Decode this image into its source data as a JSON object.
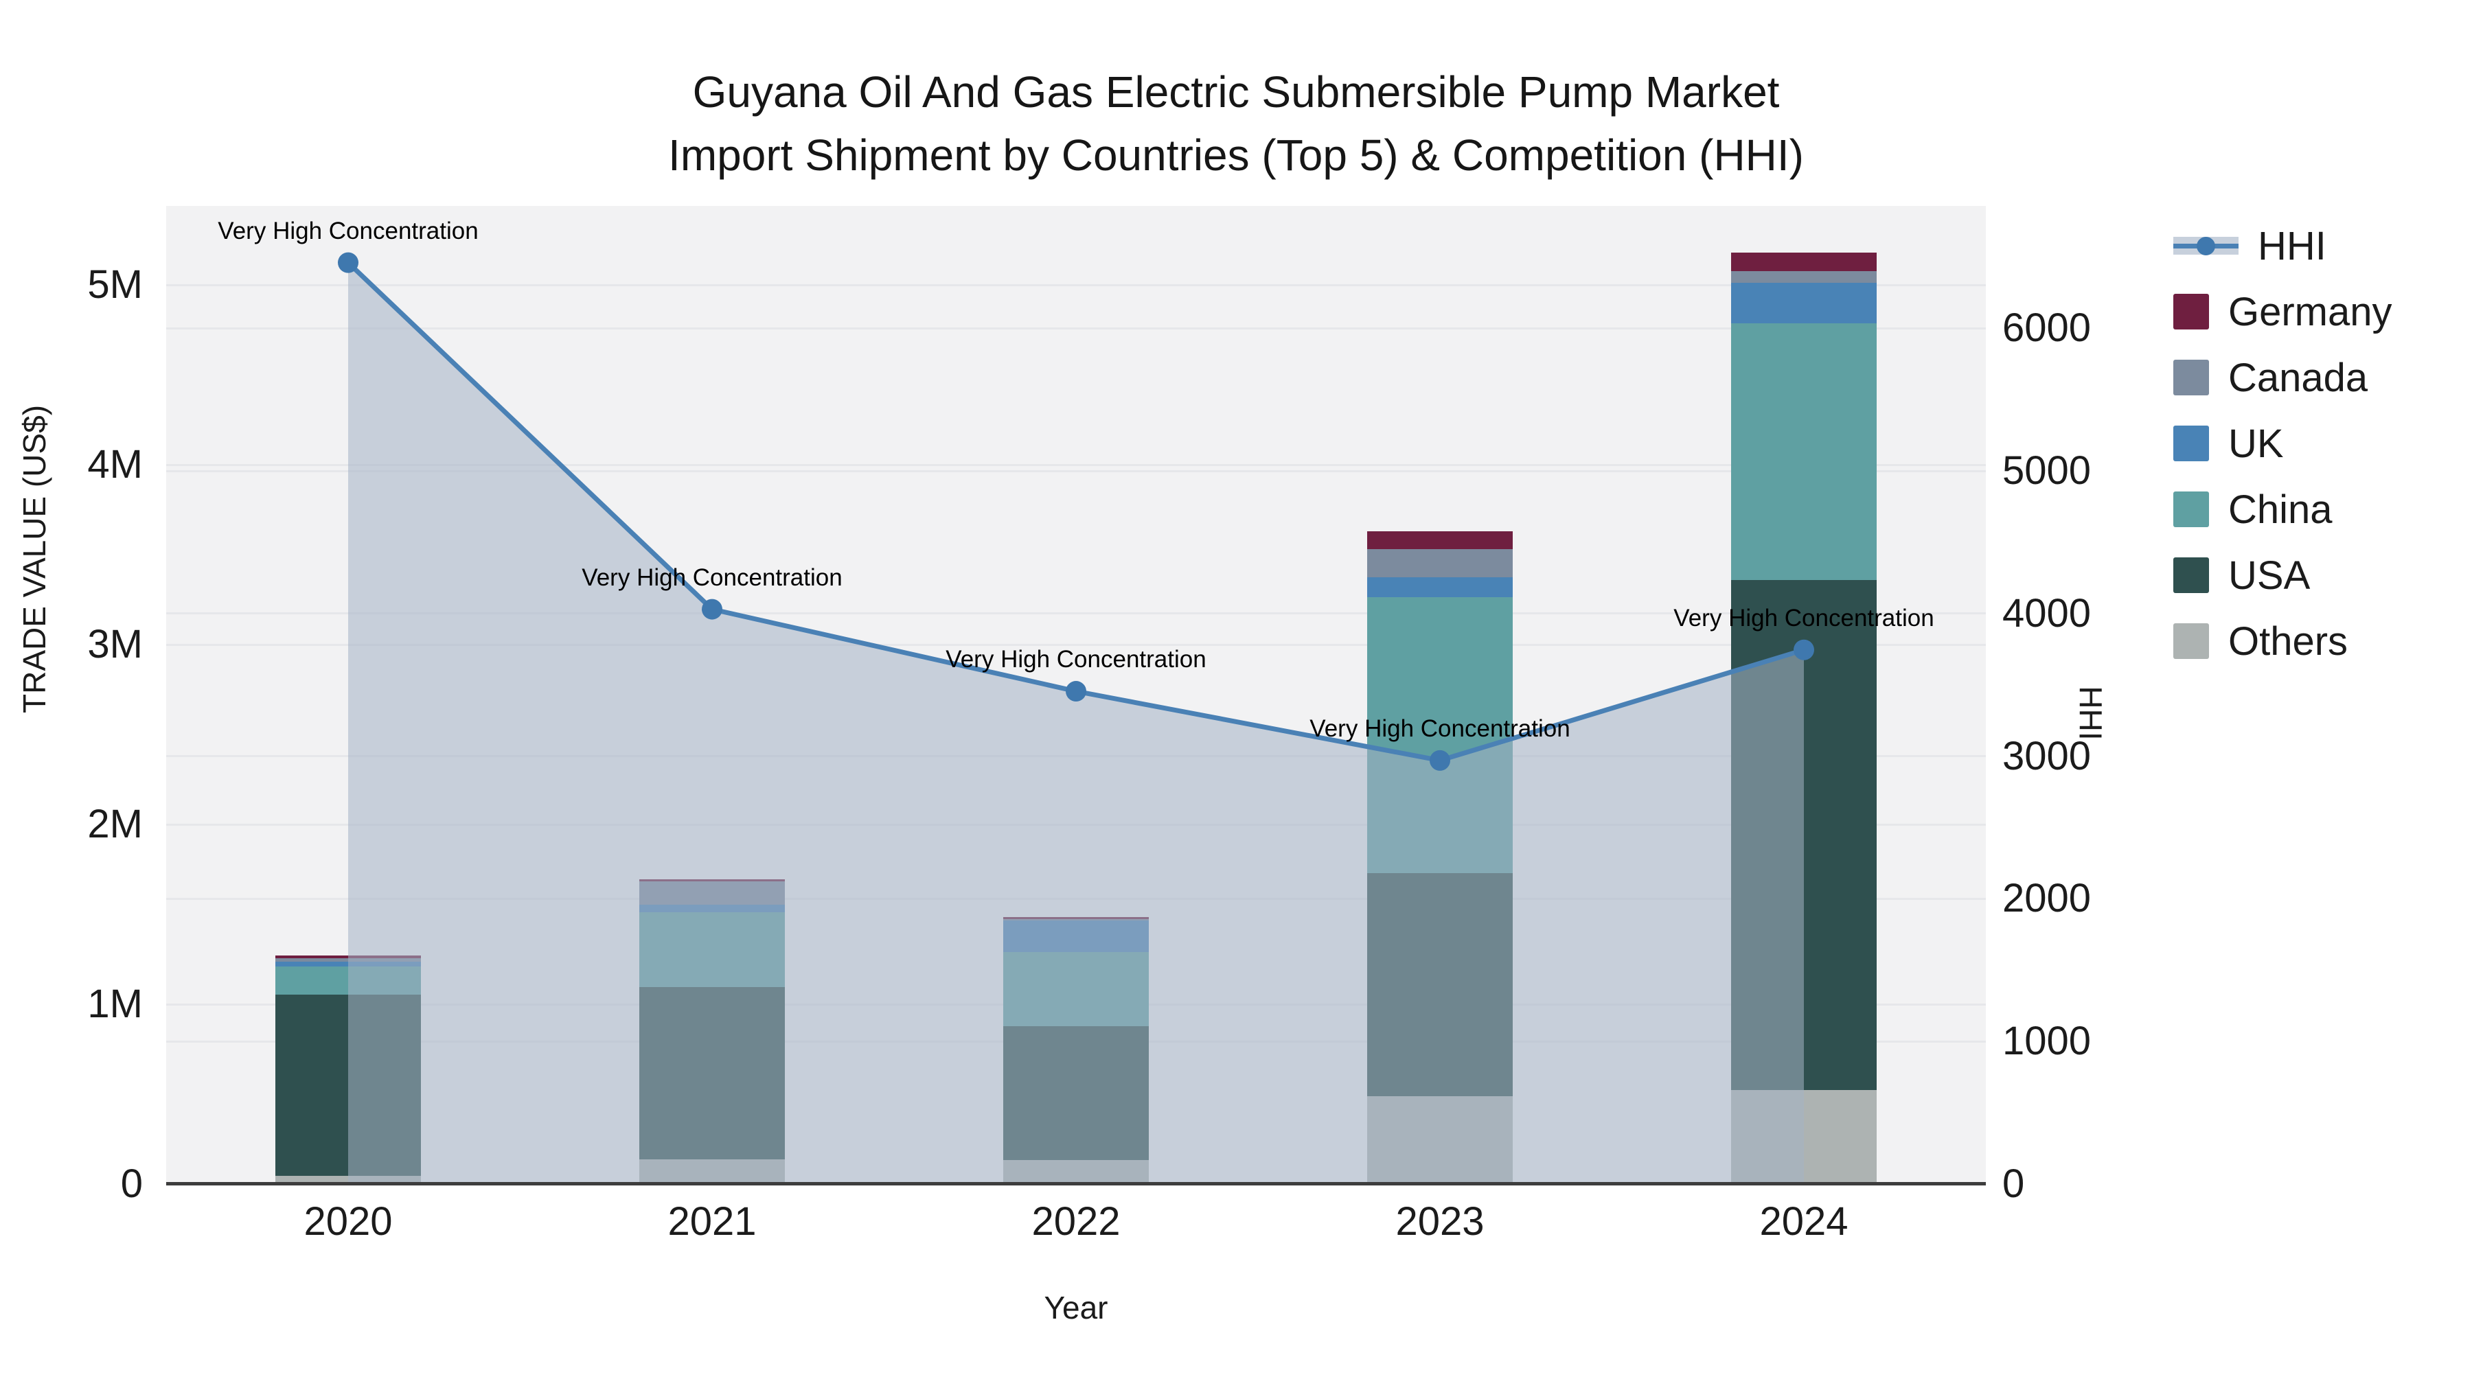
{
  "title": {
    "line1": "Guyana Oil And Gas Electric Submersible Pump Market",
    "line2": "Import Shipment by Countries (Top 5) & Competition (HHI)"
  },
  "axes": {
    "left": {
      "title": "TRADE VALUE (US$)",
      "tick_labels": [
        "0",
        "1M",
        "2M",
        "3M",
        "4M",
        "5M"
      ],
      "tick_values_usd": [
        0,
        1000000,
        2000000,
        3000000,
        4000000,
        5000000
      ]
    },
    "right": {
      "title": "HHI",
      "tick_labels": [
        "0",
        "1000",
        "2000",
        "3000",
        "4000",
        "5000",
        "6000"
      ],
      "tick_values": [
        0,
        1000,
        2000,
        3000,
        4000,
        5000,
        6000
      ]
    },
    "x": {
      "title": "Year",
      "tick_labels": [
        "2020",
        "2021",
        "2022",
        "2023",
        "2024"
      ]
    }
  },
  "legend": [
    {
      "label": "HHI",
      "type": "line",
      "color": "#4a81b5"
    },
    {
      "label": "Germany",
      "type": "swatch",
      "color": "#6f1f40"
    },
    {
      "label": "Canada",
      "type": "swatch",
      "color": "#7c8b9e"
    },
    {
      "label": "UK",
      "type": "swatch",
      "color": "#4983b6"
    },
    {
      "label": "China",
      "type": "swatch",
      "color": "#5fa0a2"
    },
    {
      "label": "USA",
      "type": "swatch",
      "color": "#2f504f"
    },
    {
      "label": "Others",
      "type": "swatch",
      "color": "#adb3b2"
    }
  ],
  "chart_data": {
    "type": "bar+line",
    "title": "Guyana Oil And Gas Electric Submersible Pump Market Import Shipment by Countries (Top 5) & Competition (HHI)",
    "categories": [
      "2020",
      "2021",
      "2022",
      "2023",
      "2024"
    ],
    "bar_stack_bottom_to_top": [
      "Others",
      "USA",
      "China",
      "UK",
      "Canada",
      "Germany"
    ],
    "series": [
      {
        "name": "Others",
        "color": "#adb3b2",
        "values": [
          45000,
          137000,
          134000,
          489000,
          523000
        ]
      },
      {
        "name": "USA",
        "color": "#2f504f",
        "values": [
          1010000,
          960000,
          745000,
          1240000,
          2836000
        ]
      },
      {
        "name": "China",
        "color": "#5fa0a2",
        "values": [
          155000,
          415000,
          412000,
          1535000,
          1427000
        ]
      },
      {
        "name": "UK",
        "color": "#4983b6",
        "values": [
          25000,
          43000,
          176000,
          111000,
          225000
        ]
      },
      {
        "name": "Canada",
        "color": "#7c8b9e",
        "values": [
          20000,
          127000,
          6000,
          157000,
          65000
        ]
      },
      {
        "name": "Germany",
        "color": "#6f1f40",
        "values": [
          15000,
          12000,
          10000,
          99000,
          103000
        ]
      }
    ],
    "bar_totals_usd": [
      1270000,
      1694000,
      1483000,
      3631000,
      5179000
    ],
    "line_series": {
      "name": "HHI",
      "color": "#4a81b5",
      "marker_color": "#3f78ae",
      "area_fill": "rgba(164,178,197,0.55)",
      "values": [
        6460,
        4030,
        3455,
        2970,
        3745
      ]
    },
    "annotations": [
      {
        "x": "2020",
        "text": "Very High Concentration"
      },
      {
        "x": "2021",
        "text": "Very High Concentration"
      },
      {
        "x": "2022",
        "text": "Very High Concentration"
      },
      {
        "x": "2023",
        "text": "Very High Concentration"
      },
      {
        "x": "2024",
        "text": "Very High Concentration"
      }
    ],
    "xlabel": "Year",
    "ylabel_left": "TRADE VALUE (US$)",
    "ylabel_right": "HHI",
    "ylim_left_usd": [
      0,
      5440000
    ],
    "ylim_right_hhi": [
      0,
      6860
    ],
    "grid": true,
    "legend_position": "right",
    "plot_bg": "#f2f2f3"
  }
}
